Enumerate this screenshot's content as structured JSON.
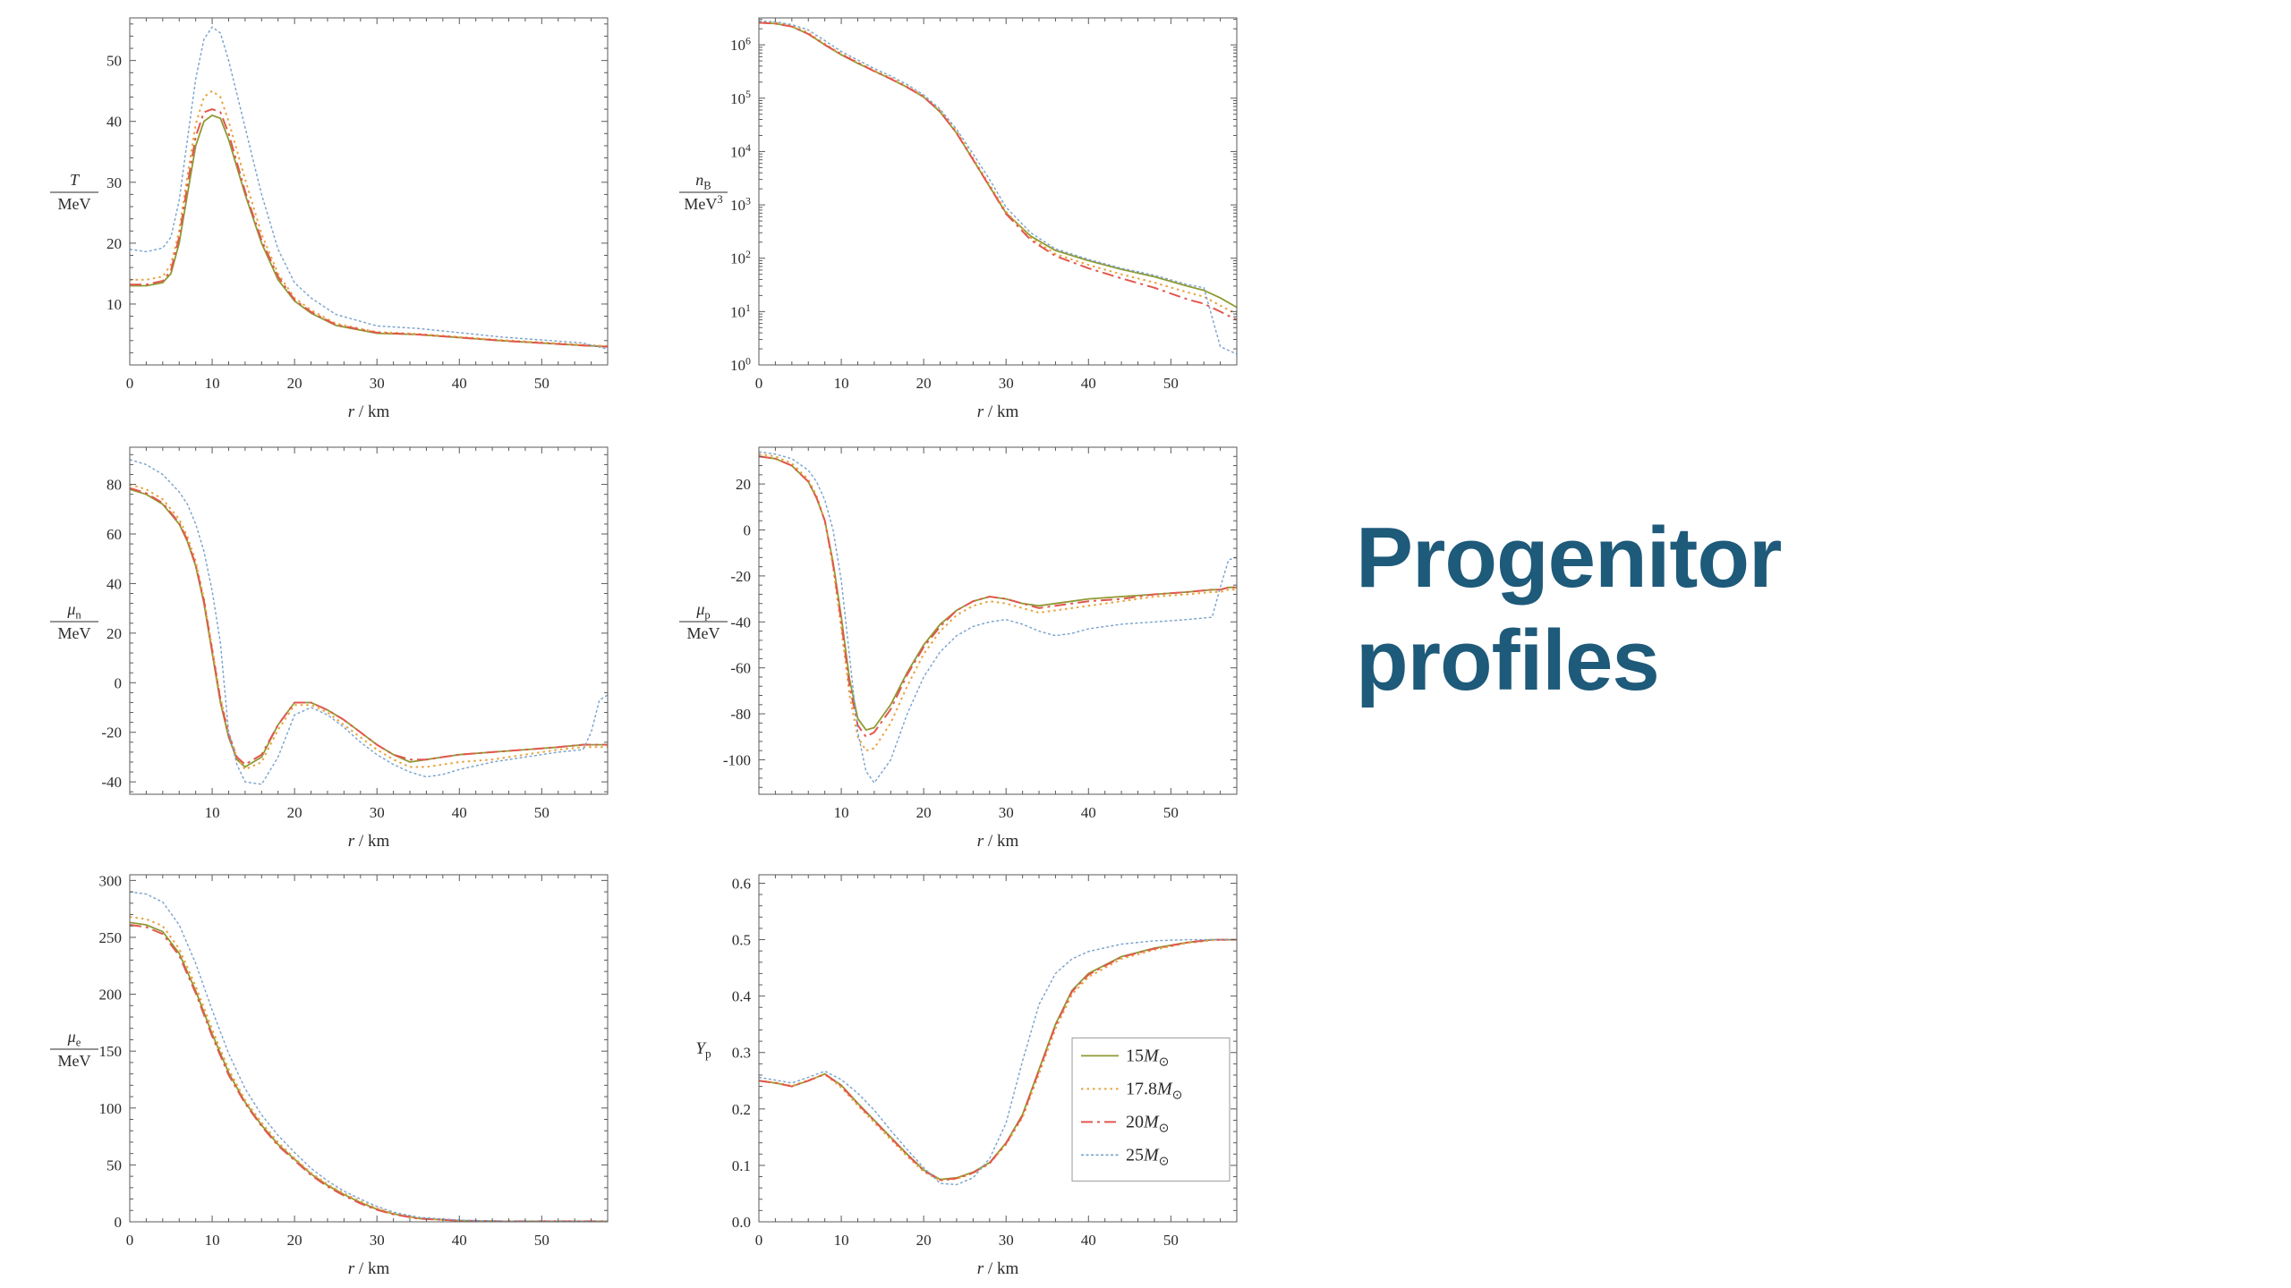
{
  "slide": {
    "title": "Progenitor profiles",
    "title_color": "#1E5A7A",
    "background": "#ffffff"
  },
  "series_styles": [
    {
      "name": "15M_⊙",
      "color": "#8F9A33",
      "dash": "",
      "width": 1.8
    },
    {
      "name": "17.8M_⊙",
      "color": "#E8A33D",
      "dash": "2.5 4",
      "width": 2
    },
    {
      "name": "20M_⊙",
      "color": "#E2574E",
      "dash": "13 5 3 5",
      "width": 2
    },
    {
      "name": "25M_⊙",
      "color": "#78A1CC",
      "dash": "3 2.5",
      "width": 1.4
    }
  ],
  "chart_data": [
    {
      "name": "temperature-profile",
      "type": "line",
      "xlabel": "r / km",
      "ylabel": {
        "top": "T",
        "bottom": "MeV"
      },
      "xlim": [
        0,
        58
      ],
      "ylim": [
        0,
        57
      ],
      "yscale": "linear",
      "xticks": [
        0,
        10,
        20,
        30,
        40,
        50
      ],
      "xtick_labels": [
        "0",
        "10",
        "20",
        "30",
        "40",
        "50"
      ],
      "yticks": [
        0,
        10,
        20,
        30,
        40,
        50
      ],
      "ytick_labels": [
        "",
        "10",
        "20",
        "30",
        "40",
        "50"
      ],
      "x": [
        0,
        2,
        4,
        5,
        6,
        7,
        8,
        9,
        10,
        11,
        12,
        14,
        16,
        18,
        20,
        22,
        25,
        30,
        35,
        40,
        45,
        50,
        55,
        58
      ],
      "series": [
        [
          13,
          13,
          13.5,
          15,
          20,
          28,
          36,
          40,
          41,
          40.5,
          37,
          28,
          20,
          14,
          10.5,
          8.5,
          6.5,
          5.2,
          5.0,
          4.5,
          4.0,
          3.6,
          3.2,
          3.0
        ],
        [
          14,
          14,
          14.5,
          16.5,
          22,
          31,
          39.5,
          44,
          45,
          44,
          40,
          30.5,
          21.5,
          15,
          11,
          9,
          6.8,
          5.4,
          5.1,
          4.6,
          4.1,
          3.7,
          3.3,
          3.1
        ],
        [
          13.2,
          13.2,
          13.8,
          15.5,
          21,
          29.5,
          37.5,
          41.5,
          42,
          41.5,
          38,
          28.5,
          20.5,
          14.5,
          10.7,
          8.7,
          6.6,
          5.3,
          5.0,
          4.5,
          4.0,
          3.6,
          3.2,
          3.0
        ],
        [
          19,
          18.6,
          19.2,
          21,
          27,
          37,
          47,
          53.5,
          55.5,
          54.5,
          50,
          39,
          28,
          19,
          13.5,
          11,
          8.3,
          6.4,
          6.0,
          5.3,
          4.6,
          4.1,
          3.6,
          2.6
        ]
      ],
      "show_legend": false
    },
    {
      "name": "baryon-density-profile",
      "type": "line",
      "xlabel": "r / km",
      "ylabel": {
        "top": "n_B",
        "bottom": "MeV^3"
      },
      "xlim": [
        0,
        58
      ],
      "ylim": [
        1,
        3200000
      ],
      "yscale": "log",
      "xticks": [
        0,
        10,
        20,
        30,
        40,
        50
      ],
      "xtick_labels": [
        "0",
        "10",
        "20",
        "30",
        "40",
        "50"
      ],
      "yticks": [
        1,
        10,
        100,
        1000,
        10000,
        100000,
        1000000
      ],
      "ytick_labels": [
        "10^0",
        "10^1",
        "10^2",
        "10^3",
        "10^4",
        "10^5",
        "10^6"
      ],
      "x": [
        0,
        2,
        4,
        6,
        8,
        10,
        12,
        14,
        16,
        18,
        20,
        22,
        24,
        26,
        28,
        30,
        33,
        36,
        40,
        44,
        48,
        52,
        54,
        56,
        58
      ],
      "series": [
        [
          2600000.0,
          2500000.0,
          2200000.0,
          1600000.0,
          1000000.0,
          650000.0,
          450000.0,
          320000.0,
          230000.0,
          160000.0,
          105000.0,
          55000.0,
          22000.0,
          7000.0,
          2200.0,
          700.0,
          260.0,
          140.0,
          90,
          62,
          45,
          30,
          25,
          18,
          12
        ],
        [
          2700000.0,
          2600000.0,
          2300000.0,
          1700000.0,
          1050000.0,
          680000.0,
          470000.0,
          330000.0,
          240000.0,
          165000.0,
          110000.0,
          58000.0,
          24000.0,
          7500.0,
          2400.0,
          750.0,
          240.0,
          120.0,
          75,
          50,
          35,
          23,
          19,
          13,
          9
        ],
        [
          2600000.0,
          2500000.0,
          2200000.0,
          1600000.0,
          1000000.0,
          660000.0,
          460000.0,
          320000.0,
          230000.0,
          160000.0,
          106000.0,
          56000.0,
          22000.0,
          7000.0,
          2200.0,
          680.0,
          220.0,
          110.0,
          65,
          42,
          28,
          17,
          14,
          10,
          7
        ],
        [
          2800000.0,
          2700000.0,
          2400000.0,
          1900000.0,
          1200000.0,
          750000.0,
          520000.0,
          360000.0,
          260000.0,
          180000.0,
          115000.0,
          62000.0,
          26000.0,
          9000.0,
          3000.0,
          900.0,
          300.0,
          150.0,
          95,
          65,
          48,
          32,
          28,
          2.2,
          1.6
        ]
      ],
      "show_legend": false
    },
    {
      "name": "neutron-chemical-potential-profile",
      "type": "line",
      "xlabel": "r / km",
      "ylabel": {
        "top": "μ_n",
        "bottom": "MeV"
      },
      "xlim": [
        0,
        58
      ],
      "ylim": [
        -45,
        95
      ],
      "yscale": "linear",
      "xticks": [
        10,
        20,
        30,
        40,
        50
      ],
      "xtick_labels": [
        "10",
        "20",
        "30",
        "40",
        "50"
      ],
      "yticks": [
        -40,
        -20,
        0,
        20,
        40,
        60,
        80
      ],
      "ytick_labels": [
        "-40",
        "-20",
        "0",
        "20",
        "40",
        "60",
        "80"
      ],
      "x": [
        0,
        2,
        4,
        6,
        7,
        8,
        9,
        10,
        11,
        12,
        13,
        14,
        16,
        18,
        20,
        22,
        24,
        26,
        28,
        30,
        32,
        34,
        36,
        38,
        40,
        44,
        48,
        52,
        55,
        56,
        57,
        58
      ],
      "series": [
        [
          78,
          76,
          72,
          64,
          57,
          47,
          32,
          12,
          -8,
          -22,
          -31,
          -34,
          -30,
          -17,
          -8,
          -8,
          -11,
          -15,
          -20,
          -25,
          -29,
          -32,
          -31,
          -30,
          -29,
          -28,
          -27,
          -26,
          -25,
          -25,
          -25,
          -25
        ],
        [
          80,
          78,
          74,
          66,
          59,
          49,
          34,
          14,
          -6,
          -20,
          -30,
          -35,
          -32,
          -19,
          -9,
          -9,
          -12,
          -17,
          -22,
          -27,
          -31,
          -34,
          -34,
          -33,
          -32,
          -31,
          -29,
          -27,
          -26,
          -26,
          -26,
          -26
        ],
        [
          78.5,
          76.5,
          72.5,
          64.5,
          57.5,
          47.5,
          33,
          13,
          -7,
          -21,
          -30,
          -33,
          -29,
          -17,
          -8,
          -8,
          -11,
          -15,
          -20,
          -25,
          -29,
          -31,
          -31,
          -30,
          -29,
          -28,
          -27,
          -26,
          -25,
          -25,
          -25,
          -25
        ],
        [
          90,
          88,
          84,
          77,
          72,
          64,
          53,
          37,
          16,
          -20,
          -33,
          -40,
          -41,
          -30,
          -13,
          -10,
          -13,
          -18,
          -24,
          -29,
          -33,
          -36,
          -38,
          -37,
          -35,
          -32,
          -30,
          -28,
          -27,
          -20,
          -7,
          -5
        ]
      ],
      "show_legend": false
    },
    {
      "name": "proton-chemical-potential-profile",
      "type": "line",
      "xlabel": "r / km",
      "ylabel": {
        "top": "μ_p",
        "bottom": "MeV"
      },
      "xlim": [
        0,
        58
      ],
      "ylim": [
        -115,
        36
      ],
      "yscale": "linear",
      "xticks": [
        10,
        20,
        30,
        40,
        50
      ],
      "xtick_labels": [
        "10",
        "20",
        "30",
        "40",
        "50"
      ],
      "yticks": [
        -100,
        -80,
        -60,
        -40,
        -20,
        0,
        20
      ],
      "ytick_labels": [
        "-100",
        "-80",
        "-60",
        "-40",
        "-20",
        "0",
        "20"
      ],
      "x": [
        0,
        2,
        4,
        6,
        7,
        8,
        9,
        10,
        11,
        12,
        13,
        14,
        16,
        18,
        20,
        22,
        24,
        26,
        28,
        30,
        32,
        34,
        36,
        38,
        40,
        44,
        48,
        52,
        55,
        56,
        57,
        58
      ],
      "series": [
        [
          32,
          31,
          28,
          21,
          14,
          4,
          -14,
          -38,
          -65,
          -82,
          -87,
          -86,
          -76,
          -62,
          -50,
          -41,
          -35,
          -31,
          -29,
          -30,
          -32,
          -33,
          -32,
          -31,
          -30,
          -29,
          -28,
          -27,
          -26,
          -26,
          -25,
          -25
        ],
        [
          33,
          32,
          29,
          22,
          15,
          4,
          -16,
          -43,
          -72,
          -90,
          -96,
          -95,
          -84,
          -68,
          -54,
          -44,
          -37,
          -33,
          -31,
          -32,
          -34,
          -36,
          -35,
          -34,
          -33,
          -31,
          -29,
          -28,
          -27,
          -27,
          -26,
          -26
        ],
        [
          32,
          31,
          28,
          21,
          14,
          4,
          -15,
          -40,
          -68,
          -85,
          -90,
          -88,
          -78,
          -63,
          -51,
          -42,
          -35,
          -31,
          -29,
          -30,
          -32,
          -34,
          -33,
          -32,
          -31,
          -30,
          -28,
          -27,
          -26,
          -26,
          -25,
          -25
        ],
        [
          34,
          33,
          31,
          26,
          21,
          13,
          0,
          -22,
          -55,
          -88,
          -105,
          -110,
          -100,
          -80,
          -64,
          -53,
          -46,
          -42,
          -40,
          -39,
          -41,
          -44,
          -46,
          -45,
          -43,
          -41,
          -40,
          -39,
          -38,
          -25,
          -13,
          -12
        ]
      ],
      "show_legend": false
    },
    {
      "name": "electron-chemical-potential-profile",
      "type": "line",
      "xlabel": "r / km",
      "ylabel": {
        "top": "μ_e",
        "bottom": "MeV"
      },
      "xlim": [
        0,
        58
      ],
      "ylim": [
        0,
        305
      ],
      "yscale": "linear",
      "xticks": [
        0,
        10,
        20,
        30,
        40,
        50
      ],
      "xtick_labels": [
        "0",
        "10",
        "20",
        "30",
        "40",
        "50"
      ],
      "yticks": [
        0,
        50,
        100,
        150,
        200,
        250,
        300
      ],
      "ytick_labels": [
        "0",
        "50",
        "100",
        "150",
        "200",
        "250",
        "300"
      ],
      "x": [
        0,
        2,
        4,
        6,
        8,
        10,
        12,
        14,
        16,
        18,
        20,
        22,
        24,
        26,
        28,
        30,
        32,
        35,
        40,
        45,
        50,
        55,
        58
      ],
      "series": [
        [
          263,
          261,
          255,
          236,
          203,
          165,
          131,
          105,
          85,
          68,
          55,
          42,
          32,
          24,
          17,
          11,
          7,
          3,
          1,
          0.5,
          0.5,
          0.5,
          0.5
        ],
        [
          268,
          266,
          260,
          240,
          207,
          169,
          134,
          107,
          87,
          70,
          56,
          43,
          33,
          25,
          18,
          12,
          7.5,
          3.2,
          1,
          0.5,
          0.5,
          0.5,
          0.5
        ],
        [
          261,
          259,
          253,
          234,
          201,
          163,
          129,
          104,
          84,
          67,
          54,
          41,
          31,
          23,
          16,
          10.5,
          6.5,
          2.8,
          1,
          0.5,
          0.5,
          0.5,
          0.5
        ],
        [
          290,
          288,
          281,
          261,
          227,
          186,
          148,
          117,
          94,
          76,
          61,
          47,
          36,
          27,
          20,
          13.5,
          8.5,
          4,
          1.5,
          0.6,
          0.5,
          0.5,
          0.5
        ]
      ],
      "show_legend": false
    },
    {
      "name": "proton-fraction-profile",
      "type": "line",
      "xlabel": "r / km",
      "ylabel": {
        "single": "Y_p"
      },
      "xlim": [
        0,
        58
      ],
      "ylim": [
        0,
        0.615
      ],
      "yscale": "linear",
      "xticks": [
        0,
        10,
        20,
        30,
        40,
        50
      ],
      "xtick_labels": [
        "0",
        "10",
        "20",
        "30",
        "40",
        "50"
      ],
      "yticks": [
        0,
        0.1,
        0.2,
        0.3,
        0.4,
        0.5,
        0.6
      ],
      "ytick_labels": [
        "0.0",
        "0.1",
        "0.2",
        "0.3",
        "0.4",
        "0.5",
        "0.6"
      ],
      "x": [
        0,
        2,
        4,
        6,
        8,
        10,
        12,
        14,
        16,
        18,
        20,
        22,
        24,
        26,
        28,
        30,
        32,
        34,
        36,
        38,
        40,
        44,
        48,
        52,
        55,
        58
      ],
      "series": [
        [
          0.25,
          0.246,
          0.24,
          0.25,
          0.262,
          0.242,
          0.21,
          0.18,
          0.15,
          0.12,
          0.092,
          0.075,
          0.078,
          0.088,
          0.105,
          0.14,
          0.19,
          0.27,
          0.35,
          0.41,
          0.44,
          0.47,
          0.485,
          0.495,
          0.5,
          0.5
        ],
        [
          0.25,
          0.247,
          0.241,
          0.251,
          0.261,
          0.238,
          0.206,
          0.176,
          0.146,
          0.116,
          0.089,
          0.073,
          0.076,
          0.086,
          0.103,
          0.137,
          0.185,
          0.262,
          0.342,
          0.403,
          0.434,
          0.466,
          0.482,
          0.494,
          0.499,
          0.5
        ],
        [
          0.25,
          0.246,
          0.24,
          0.25,
          0.262,
          0.241,
          0.209,
          0.179,
          0.149,
          0.119,
          0.091,
          0.074,
          0.077,
          0.087,
          0.104,
          0.139,
          0.188,
          0.268,
          0.348,
          0.408,
          0.438,
          0.469,
          0.484,
          0.495,
          0.5,
          0.5
        ],
        [
          0.256,
          0.251,
          0.246,
          0.256,
          0.267,
          0.252,
          0.228,
          0.198,
          0.162,
          0.128,
          0.096,
          0.068,
          0.066,
          0.078,
          0.112,
          0.175,
          0.285,
          0.385,
          0.44,
          0.466,
          0.479,
          0.492,
          0.498,
          0.5,
          0.5,
          0.5
        ]
      ],
      "show_legend": true
    }
  ]
}
